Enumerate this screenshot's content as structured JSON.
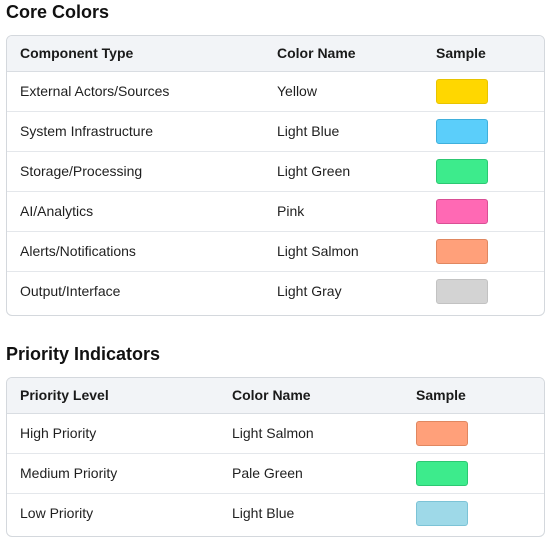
{
  "core": {
    "title": "Core Colors",
    "headers": [
      "Component Type",
      "Color Name",
      "Sample"
    ],
    "rows": [
      {
        "label": "External Actors/Sources",
        "color_name": "Yellow",
        "color": "#FFD700",
        "border": "#E8C400"
      },
      {
        "label": "System Infrastructure",
        "color_name": "Light Blue",
        "color": "#5BCEFA",
        "border": "#3FB0DC"
      },
      {
        "label": "Storage/Processing",
        "color_name": "Light Green",
        "color": "#3DEB8C",
        "border": "#2CC872"
      },
      {
        "label": "AI/Analytics",
        "color_name": "Pink",
        "color": "#FF69B4",
        "border": "#D94F95"
      },
      {
        "label": "Alerts/Notifications",
        "color_name": "Light Salmon",
        "color": "#FFA07A",
        "border": "#E08760"
      },
      {
        "label": "Output/Interface",
        "color_name": "Light Gray",
        "color": "#D3D3D3",
        "border": "#C2C2C2"
      }
    ]
  },
  "priority": {
    "title": "Priority Indicators",
    "headers": [
      "Priority Level",
      "Color Name",
      "Sample"
    ],
    "rows": [
      {
        "label": "High Priority",
        "color_name": "Light Salmon",
        "color": "#FFA07A",
        "border": "#E08760"
      },
      {
        "label": "Medium Priority",
        "color_name": "Pale Green",
        "color": "#3DEB8C",
        "border": "#2CC872"
      },
      {
        "label": "Low Priority",
        "color_name": "Light Blue",
        "color": "#9ED9E8",
        "border": "#7CC3D6"
      }
    ]
  }
}
